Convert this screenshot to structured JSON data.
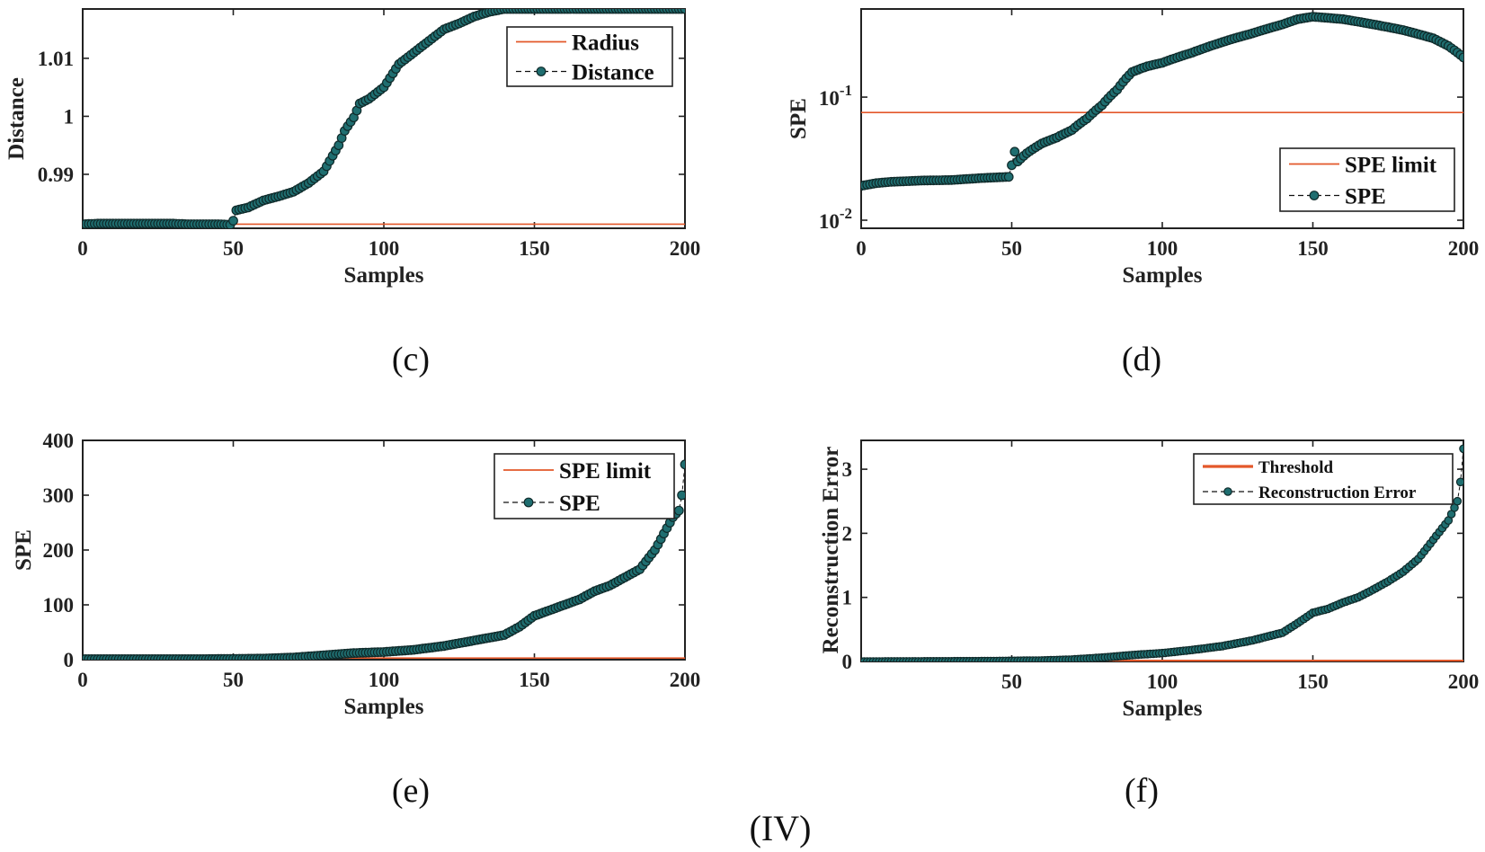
{
  "figure": {
    "caption": "(IV)"
  },
  "chart_data": [
    {
      "id": "c",
      "type": "line",
      "caption": "(c)",
      "xlabel": "Samples",
      "ylabel": "Distance",
      "xlim": [
        0,
        200
      ],
      "ylim": [
        0.9807,
        1.0185
      ],
      "yscale": "linear",
      "xticks": [
        0,
        50,
        100,
        150,
        200
      ],
      "xtick_labels": [
        "0",
        "50",
        "100",
        "150",
        "200"
      ],
      "yticks": [
        0.99,
        1.0,
        1.01
      ],
      "ytick_labels": [
        "0.99",
        "1",
        "1.01"
      ],
      "legend": {
        "position": "top-right",
        "entries": [
          "Radius",
          "Distance"
        ]
      },
      "series": [
        {
          "name": "Radius",
          "style": "threshold",
          "value": 0.9814
        },
        {
          "name": "Distance",
          "style": "markers",
          "x": [
            0,
            5,
            10,
            15,
            20,
            25,
            30,
            35,
            40,
            45,
            49,
            50,
            51,
            55,
            60,
            65,
            70,
            75,
            80,
            85,
            87,
            88,
            90,
            92,
            95,
            100,
            105,
            110,
            115,
            120,
            125,
            130,
            135,
            140,
            145,
            150,
            160,
            170,
            180,
            190,
            200
          ],
          "y": [
            0.9814,
            0.9815,
            0.9815,
            0.9815,
            0.9815,
            0.9815,
            0.9815,
            0.9814,
            0.9814,
            0.9814,
            0.9813,
            0.982,
            0.9838,
            0.9843,
            0.9855,
            0.9862,
            0.987,
            0.9885,
            0.9905,
            0.995,
            0.9975,
            0.9983,
            0.9998,
            1.0022,
            1.003,
            1.005,
            1.009,
            1.011,
            1.013,
            1.015,
            1.016,
            1.0172,
            1.018,
            1.0185,
            1.0185,
            1.0185,
            1.0185,
            1.0185,
            1.0185,
            1.0185,
            1.0185
          ]
        }
      ]
    },
    {
      "id": "d",
      "type": "line",
      "caption": "(d)",
      "xlabel": "Samples",
      "ylabel": "SPE",
      "xlim": [
        0,
        200
      ],
      "ylim": [
        0.0086,
        0.52
      ],
      "yscale": "log",
      "xticks": [
        0,
        50,
        100,
        150,
        200
      ],
      "xtick_labels": [
        "0",
        "50",
        "100",
        "150",
        "200"
      ],
      "yticks": [
        0.01,
        0.1
      ],
      "ytick_labels": [
        {
          "base": "10",
          "exp": "-2"
        },
        {
          "base": "10",
          "exp": "-1"
        }
      ],
      "legend": {
        "position": "middle-right",
        "entries": [
          "SPE limit",
          "SPE"
        ]
      },
      "series": [
        {
          "name": "SPE limit",
          "style": "threshold",
          "value": 0.075
        },
        {
          "name": "SPE",
          "style": "markers",
          "x": [
            0,
            5,
            10,
            20,
            30,
            40,
            49,
            50,
            51,
            52,
            55,
            60,
            65,
            70,
            75,
            80,
            85,
            90,
            95,
            100,
            110,
            120,
            130,
            140,
            145,
            150,
            160,
            170,
            180,
            190,
            195,
            200
          ],
          "y": [
            0.019,
            0.02,
            0.0205,
            0.021,
            0.0212,
            0.022,
            0.0225,
            0.028,
            0.036,
            0.03,
            0.035,
            0.042,
            0.047,
            0.054,
            0.067,
            0.086,
            0.115,
            0.16,
            0.178,
            0.19,
            0.23,
            0.28,
            0.33,
            0.39,
            0.43,
            0.45,
            0.43,
            0.39,
            0.35,
            0.3,
            0.26,
            0.21
          ]
        }
      ]
    },
    {
      "id": "e",
      "type": "line",
      "caption": "(e)",
      "xlabel": "Samples",
      "ylabel": "SPE",
      "xlim": [
        0,
        200
      ],
      "ylim": [
        0,
        400
      ],
      "yscale": "linear",
      "xticks": [
        0,
        50,
        100,
        150,
        200
      ],
      "xtick_labels": [
        "0",
        "50",
        "100",
        "150",
        "200"
      ],
      "yticks": [
        0,
        100,
        200,
        300,
        400
      ],
      "ytick_labels": [
        "0",
        "100",
        "200",
        "300",
        "400"
      ],
      "legend": {
        "position": "top-right",
        "entries": [
          "SPE limit",
          "SPE"
        ]
      },
      "series": [
        {
          "name": "SPE limit",
          "style": "threshold",
          "value": 3
        },
        {
          "name": "SPE",
          "style": "markers",
          "x": [
            0,
            10,
            20,
            30,
            40,
            50,
            60,
            70,
            80,
            90,
            100,
            110,
            120,
            130,
            140,
            145,
            150,
            155,
            160,
            165,
            170,
            175,
            180,
            185,
            190,
            193,
            196,
            198,
            199,
            200
          ],
          "y": [
            1,
            1,
            1,
            1,
            1,
            1.5,
            2,
            4,
            8,
            12,
            14,
            18,
            25,
            35,
            45,
            60,
            80,
            90,
            100,
            110,
            125,
            135,
            150,
            165,
            200,
            230,
            260,
            272,
            300,
            356
          ]
        }
      ]
    },
    {
      "id": "f",
      "type": "line",
      "caption": "(f)",
      "xlabel": "Samples",
      "ylabel": "Reconstruction Error",
      "xlim": [
        0,
        200
      ],
      "ylim": [
        0,
        3.45
      ],
      "yscale": "linear",
      "xticks": [
        50,
        100,
        150,
        200
      ],
      "xtick_labels": [
        "50",
        "100",
        "150",
        "200"
      ],
      "yticks": [
        0,
        1,
        2,
        3
      ],
      "ytick_labels": [
        "0",
        "1",
        "2",
        "3"
      ],
      "legend": {
        "position": "top-right",
        "entries": [
          "Threshold",
          "Reconstruction Error"
        ]
      },
      "series": [
        {
          "name": "Threshold",
          "style": "threshold",
          "value": 0.005
        },
        {
          "name": "Reconstruction Error",
          "style": "markers",
          "x": [
            0,
            20,
            40,
            60,
            70,
            80,
            90,
            100,
            110,
            120,
            130,
            140,
            145,
            150,
            155,
            160,
            165,
            170,
            175,
            180,
            185,
            190,
            195,
            198,
            199,
            200
          ],
          "y": [
            0,
            0.002,
            0.005,
            0.015,
            0.03,
            0.06,
            0.1,
            0.13,
            0.18,
            0.24,
            0.33,
            0.45,
            0.6,
            0.76,
            0.82,
            0.92,
            1.0,
            1.12,
            1.25,
            1.4,
            1.6,
            1.9,
            2.2,
            2.5,
            2.8,
            3.32
          ]
        }
      ]
    }
  ],
  "colors": {
    "threshold": "#e3582a",
    "marker_fill": "#1f6e70",
    "marker_edge": "#0f2a2a",
    "axis": "#222222"
  }
}
